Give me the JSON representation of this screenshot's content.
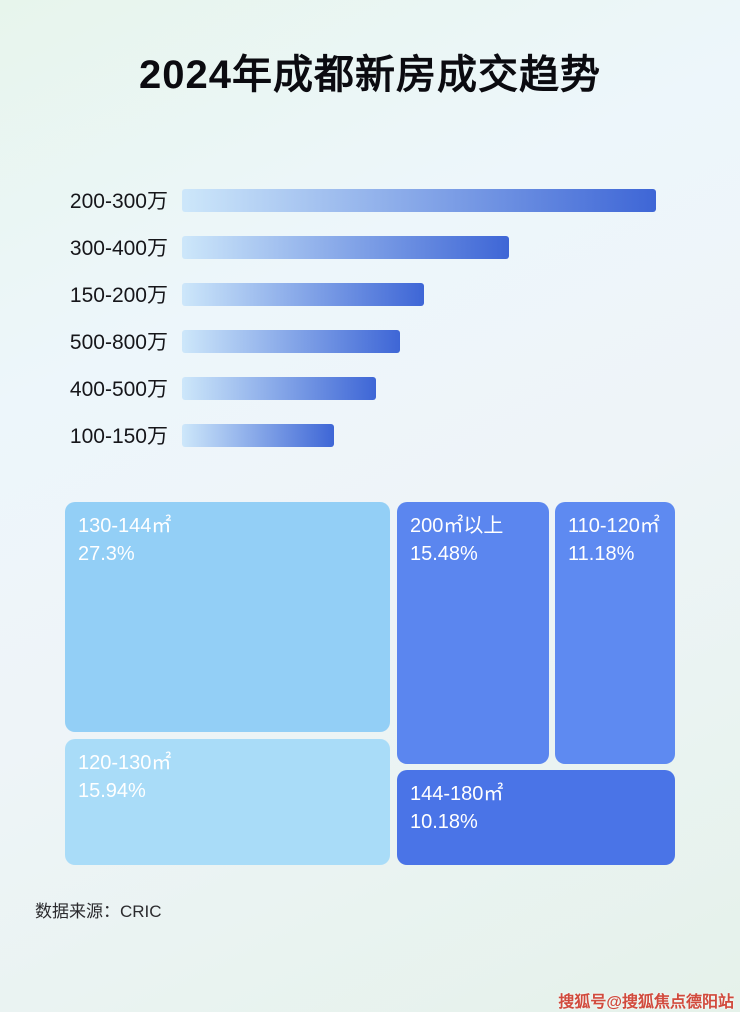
{
  "page": {
    "title": "2024年成都新房成交趋势",
    "source": "数据来源：CRIC",
    "watermark": "搜狐号@搜狐焦点德阳站"
  },
  "chart_data": [
    {
      "type": "bar",
      "orientation": "horizontal",
      "title": "2024年成都新房成交趋势",
      "categories": [
        "200-300万",
        "300-400万",
        "150-200万",
        "500-800万",
        "400-500万",
        "100-150万"
      ],
      "values_relative": [
        100,
        69,
        51,
        46,
        41,
        32
      ],
      "value_labels_shown": false,
      "xlabel": "",
      "ylabel": "",
      "grid": false,
      "legend": false,
      "bar_gradient": [
        "#cde7fa",
        "#3e66d6"
      ]
    },
    {
      "type": "treemap",
      "title": "",
      "blocks": [
        {
          "label": "130-144㎡",
          "percent": "27.3%",
          "color": "#93cff6"
        },
        {
          "label": "120-130㎡",
          "percent": "15.94%",
          "color": "#a9dcf8"
        },
        {
          "label": "200㎡以上",
          "percent": "15.48%",
          "color": "#5b86ef"
        },
        {
          "label": "110-120㎡",
          "percent": "11.18%",
          "color": "#5e8af1"
        },
        {
          "label": "144-180㎡",
          "percent": "10.18%",
          "color": "#4a74e7"
        }
      ]
    }
  ]
}
